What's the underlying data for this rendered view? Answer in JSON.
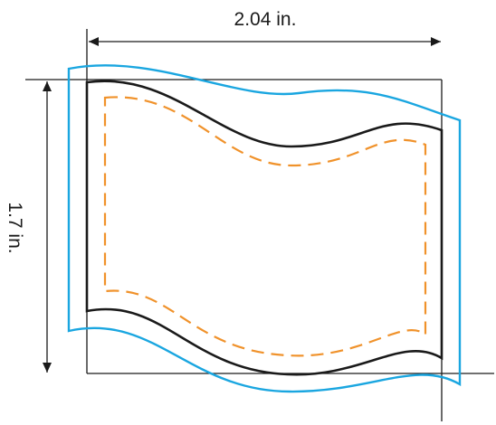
{
  "dimensions": {
    "width_label": "2.04 in.",
    "height_label": "1.7 in."
  },
  "colors": {
    "bleed": "#1aa6e0",
    "trim": "#1a1a1a",
    "safe": "#f0922b",
    "lines": "#1a1a1a"
  }
}
